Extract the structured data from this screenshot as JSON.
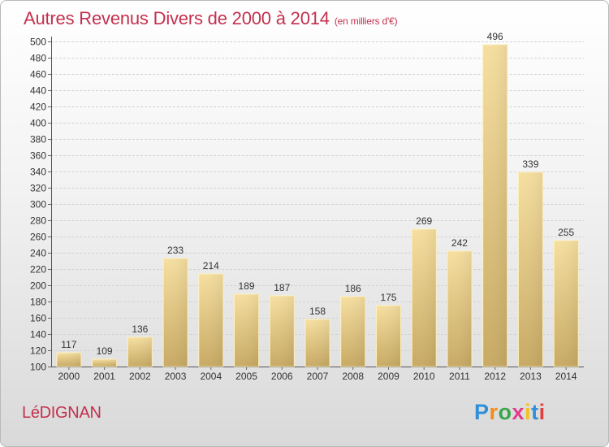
{
  "header": {
    "title": "Autres Revenus Divers de 2000 à 2014",
    "subtitle": "(en milliers d'€)"
  },
  "footer": {
    "town": "LéDIGNAN",
    "logo_text": "Proxiti"
  },
  "colors": {
    "title": "#c4304d",
    "bar_light": "#f6dfa0",
    "bar_dark": "#c8aa64",
    "bar_edge": "#fff2c0"
  },
  "chart_data": {
    "type": "bar",
    "categories": [
      "2000",
      "2001",
      "2002",
      "2003",
      "2004",
      "2005",
      "2006",
      "2007",
      "2008",
      "2009",
      "2010",
      "2011",
      "2012",
      "2013",
      "2014"
    ],
    "values": [
      117,
      109,
      136,
      233,
      214,
      189,
      187,
      158,
      186,
      175,
      269,
      242,
      496,
      339,
      255
    ],
    "ylim": [
      100,
      500
    ],
    "yticks": [
      100,
      120,
      140,
      160,
      180,
      200,
      220,
      240,
      260,
      280,
      300,
      320,
      340,
      360,
      380,
      400,
      420,
      440,
      460,
      480,
      500
    ],
    "grid": true,
    "legend": "none"
  }
}
